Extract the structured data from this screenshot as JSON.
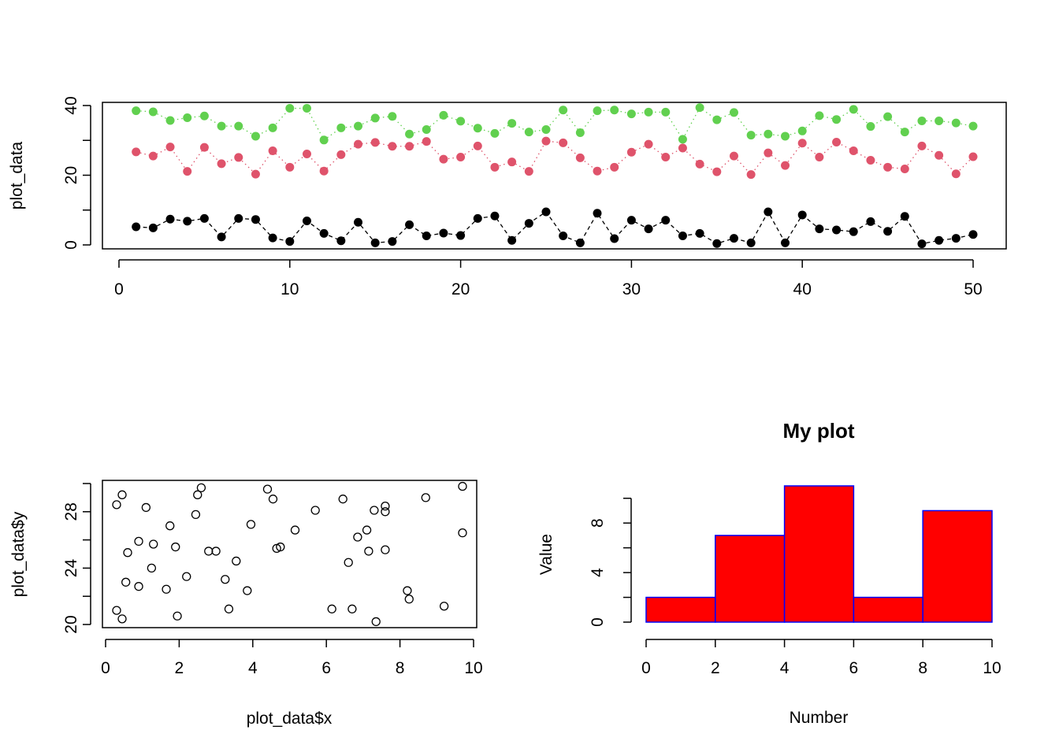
{
  "colors": {
    "series_black": "#000000",
    "series_red": "#DF536B",
    "series_green": "#61D04F",
    "bar_fill": "#FF0000",
    "bar_border": "#0000FF"
  },
  "chart_data": [
    {
      "type": "line",
      "ylabel": "plot_data",
      "xlabel": "",
      "xlim": [
        0,
        50
      ],
      "ylim": [
        0,
        40
      ],
      "xticks": [
        "0",
        "10",
        "20",
        "30",
        "40",
        "50"
      ],
      "yticks": [
        "0",
        "20",
        "40"
      ],
      "grid": false,
      "legend": "none",
      "x": [
        1,
        2,
        3,
        4,
        5,
        6,
        7,
        8,
        9,
        10,
        11,
        12,
        13,
        14,
        15,
        16,
        17,
        18,
        19,
        20,
        21,
        22,
        23,
        24,
        25,
        26,
        27,
        28,
        29,
        30,
        31,
        32,
        33,
        34,
        35,
        36,
        37,
        38,
        39,
        40,
        41,
        42,
        43,
        44,
        45,
        46,
        47,
        48,
        49,
        50
      ],
      "series": [
        {
          "color": "#000000",
          "line_style": "dashed",
          "values": [
            5.2,
            4.9,
            7.4,
            6.8,
            7.6,
            2.3,
            7.6,
            7.3,
            2.0,
            1.0,
            6.9,
            3.3,
            1.2,
            6.5,
            0.6,
            1.0,
            5.8,
            2.6,
            3.4,
            2.7,
            7.6,
            8.3,
            1.3,
            6.2,
            9.5,
            2.6,
            0.6,
            9.1,
            1.8,
            7.1,
            4.6,
            7.1,
            2.6,
            3.3,
            0.4,
            1.9,
            0.6,
            9.5,
            0.6,
            8.6,
            4.6,
            4.3,
            3.8,
            6.7,
            3.9,
            8.2,
            0.3,
            1.3,
            1.9,
            3.0
          ]
        },
        {
          "color": "#DF536B",
          "line_style": "dotted",
          "values": [
            26.7,
            25.5,
            28.1,
            21.1,
            28.0,
            23.3,
            25.1,
            20.3,
            27.0,
            22.3,
            26.1,
            21.2,
            25.9,
            28.9,
            29.4,
            28.3,
            28.3,
            29.7,
            24.6,
            25.2,
            28.4,
            22.3,
            23.8,
            21.1,
            29.8,
            29.3,
            25.0,
            21.2,
            22.3,
            26.6,
            28.9,
            25.2,
            27.8,
            23.2,
            21.0,
            25.5,
            20.2,
            26.4,
            22.8,
            29.2,
            25.2,
            29.5,
            27.0,
            24.3,
            22.3,
            21.8,
            28.4,
            25.7,
            20.4,
            25.3
          ]
        },
        {
          "color": "#61D04F",
          "line_style": "dotted",
          "values": [
            38.5,
            38.2,
            35.7,
            36.5,
            37.0,
            34.1,
            34.1,
            31.2,
            33.6,
            39.2,
            39.2,
            30.1,
            33.6,
            34.1,
            36.4,
            36.9,
            31.8,
            33.1,
            37.2,
            35.5,
            33.5,
            32.0,
            34.9,
            32.4,
            33.1,
            38.7,
            32.2,
            38.5,
            38.7,
            37.6,
            38.1,
            38.1,
            30.3,
            39.4,
            35.9,
            38.0,
            31.5,
            31.8,
            31.2,
            32.7,
            37.1,
            36.0,
            38.9,
            34.0,
            36.8,
            32.4,
            35.6,
            35.6,
            35.0,
            34.1
          ]
        }
      ]
    },
    {
      "type": "scatter",
      "xlabel": "plot_data$x",
      "ylabel": "plot_data$y",
      "xlim": [
        0,
        10
      ],
      "ylim": [
        20,
        30
      ],
      "xticks": [
        "0",
        "2",
        "4",
        "6",
        "8",
        "10"
      ],
      "yticks": [
        "20",
        "24",
        "28"
      ],
      "grid": false,
      "legend": "none",
      "points": [
        [
          0.3,
          28.5
        ],
        [
          0.45,
          29.2
        ],
        [
          0.6,
          25.1
        ],
        [
          0.55,
          23.0
        ],
        [
          0.3,
          21.0
        ],
        [
          0.45,
          20.4
        ],
        [
          0.9,
          25.9
        ],
        [
          1.1,
          28.3
        ],
        [
          0.9,
          22.7
        ],
        [
          1.25,
          24.0
        ],
        [
          1.3,
          25.7
        ],
        [
          1.65,
          22.5
        ],
        [
          1.75,
          27.0
        ],
        [
          1.9,
          25.5
        ],
        [
          1.95,
          20.6
        ],
        [
          2.2,
          23.4
        ],
        [
          2.45,
          27.8
        ],
        [
          2.5,
          29.2
        ],
        [
          2.6,
          29.7
        ],
        [
          2.8,
          25.2
        ],
        [
          3.0,
          25.2
        ],
        [
          3.25,
          23.2
        ],
        [
          3.35,
          21.1
        ],
        [
          3.55,
          24.5
        ],
        [
          3.85,
          22.4
        ],
        [
          3.95,
          27.1
        ],
        [
          4.4,
          29.6
        ],
        [
          4.55,
          28.9
        ],
        [
          4.65,
          25.4
        ],
        [
          4.75,
          25.5
        ],
        [
          5.15,
          26.7
        ],
        [
          5.7,
          28.1
        ],
        [
          6.15,
          21.1
        ],
        [
          6.45,
          28.9
        ],
        [
          6.6,
          24.4
        ],
        [
          6.7,
          21.1
        ],
        [
          6.85,
          26.2
        ],
        [
          7.1,
          26.7
        ],
        [
          7.15,
          25.2
        ],
        [
          7.3,
          28.1
        ],
        [
          7.35,
          20.2
        ],
        [
          7.6,
          28.4
        ],
        [
          7.6,
          28.0
        ],
        [
          7.6,
          25.3
        ],
        [
          8.2,
          22.4
        ],
        [
          8.25,
          21.8
        ],
        [
          8.7,
          29.0
        ],
        [
          9.2,
          21.3
        ],
        [
          9.7,
          29.8
        ],
        [
          9.7,
          26.5
        ]
      ]
    },
    {
      "type": "bar",
      "title": "My plot",
      "xlabel": "Number",
      "ylabel": "Value",
      "bins": [
        [
          0,
          2
        ],
        [
          2,
          4
        ],
        [
          4,
          6
        ],
        [
          6,
          8
        ],
        [
          8,
          10
        ]
      ],
      "values": [
        2,
        7,
        11,
        2,
        9
      ],
      "xlim": [
        0,
        10
      ],
      "ylim": [
        0,
        11
      ],
      "xticks": [
        "0",
        "2",
        "4",
        "6",
        "8",
        "10"
      ],
      "yticks": [
        "0",
        "4",
        "8"
      ],
      "fill": "#FF0000",
      "border": "#0000FF",
      "grid": false,
      "legend": "none"
    }
  ]
}
